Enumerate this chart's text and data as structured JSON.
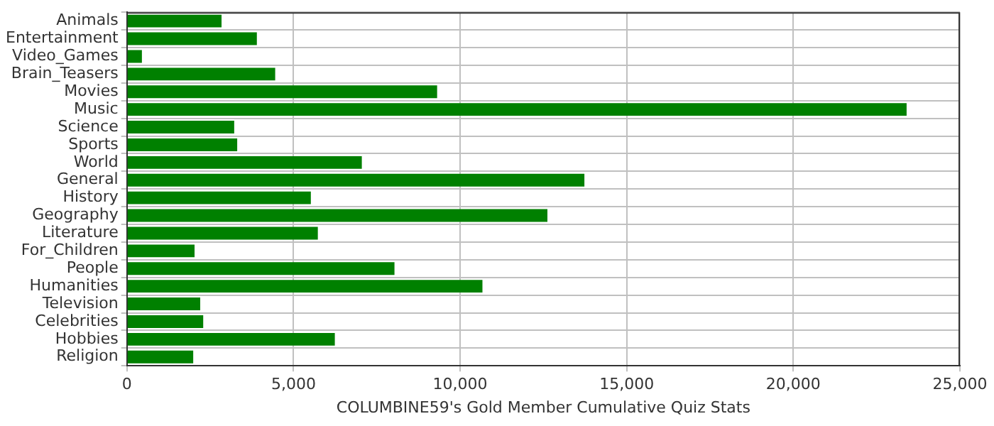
{
  "chart_data": {
    "type": "bar",
    "orientation": "horizontal",
    "xlabel": "COLUMBINE59's Gold Member Cumulative Quiz Stats",
    "categories": [
      "Animals",
      "Entertainment",
      "Video_Games",
      "Brain_Teasers",
      "Movies",
      "Music",
      "Science",
      "Sports",
      "World",
      "General",
      "History",
      "Geography",
      "Literature",
      "For_Children",
      "People",
      "Humanities",
      "Television",
      "Celebrities",
      "Hobbies",
      "Religion"
    ],
    "values": [
      2840,
      3900,
      450,
      4450,
      9310,
      23400,
      3220,
      3310,
      7050,
      13730,
      5520,
      12620,
      5730,
      2030,
      8030,
      10670,
      2200,
      2290,
      6240,
      1990
    ],
    "color": "#008000",
    "xlim": [
      0,
      25000
    ],
    "xticks": [
      {
        "value": 0,
        "label": "0"
      },
      {
        "value": 5000,
        "label": "5,000"
      },
      {
        "value": 10000,
        "label": "10,000"
      },
      {
        "value": 15000,
        "label": "15,000"
      },
      {
        "value": 20000,
        "label": "20,000"
      },
      {
        "value": 25000,
        "label": "25,000"
      }
    ],
    "grid": true
  }
}
